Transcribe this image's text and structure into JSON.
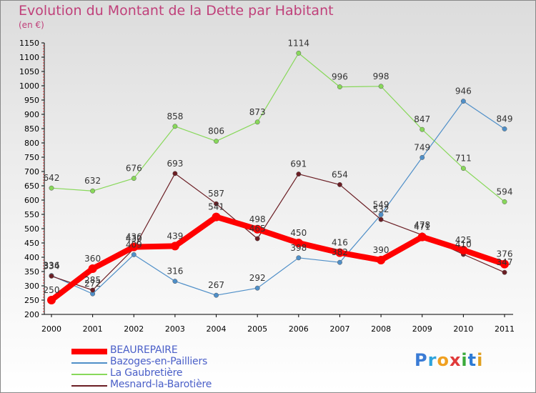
{
  "title": "Evolution du Montant de la Dette par Habitant",
  "unit": "(en €)",
  "logo": {
    "text": "Proxiti",
    "letters": [
      {
        "ch": "P",
        "color": "#3a7bd5"
      },
      {
        "ch": "r",
        "color": "#2ea3dc"
      },
      {
        "ch": "o",
        "color": "#f0a020"
      },
      {
        "ch": "x",
        "color": "#e03a3a"
      },
      {
        "ch": "i",
        "color": "#3aaa3a"
      },
      {
        "ch": "t",
        "color": "#2e7bd5"
      },
      {
        "ch": "i",
        "color": "#e0a020"
      }
    ]
  },
  "chart_data": {
    "type": "line",
    "title": "Evolution du Montant de la Dette par Habitant",
    "ylabel": "(en €)",
    "x": [
      "2000",
      "2001",
      "2002",
      "2003",
      "2004",
      "2005",
      "2006",
      "2007",
      "2008",
      "2009",
      "2010",
      "2011"
    ],
    "ylim": [
      200,
      1150
    ],
    "yticks": [
      200,
      250,
      300,
      350,
      400,
      450,
      500,
      550,
      600,
      650,
      700,
      750,
      800,
      850,
      900,
      950,
      1000,
      1050,
      1100,
      1150
    ],
    "grid": false,
    "legend": "bottom-left",
    "series": [
      {
        "name": "BEAUREPAIRE",
        "color": "#ff0000",
        "values": [
          250,
          360,
          436,
          439,
          541,
          498,
          450,
          416,
          390,
          471,
          425,
          376
        ]
      },
      {
        "name": "Bazoges-en-Pailliers",
        "color": "#4f8fc8",
        "values": [
          336,
          272,
          409,
          316,
          267,
          292,
          398,
          382,
          549,
          749,
          946,
          849
        ]
      },
      {
        "name": "La Gaubretière",
        "color": "#88d85a",
        "values": [
          642,
          632,
          676,
          858,
          806,
          873,
          1114,
          996,
          998,
          847,
          711,
          594
        ]
      },
      {
        "name": "Mesnard-la-Barotière",
        "color": "#6b1e24",
        "values": [
          334,
          285,
          430,
          693,
          587,
          465,
          691,
          654,
          532,
          478,
          410,
          347
        ]
      }
    ]
  }
}
